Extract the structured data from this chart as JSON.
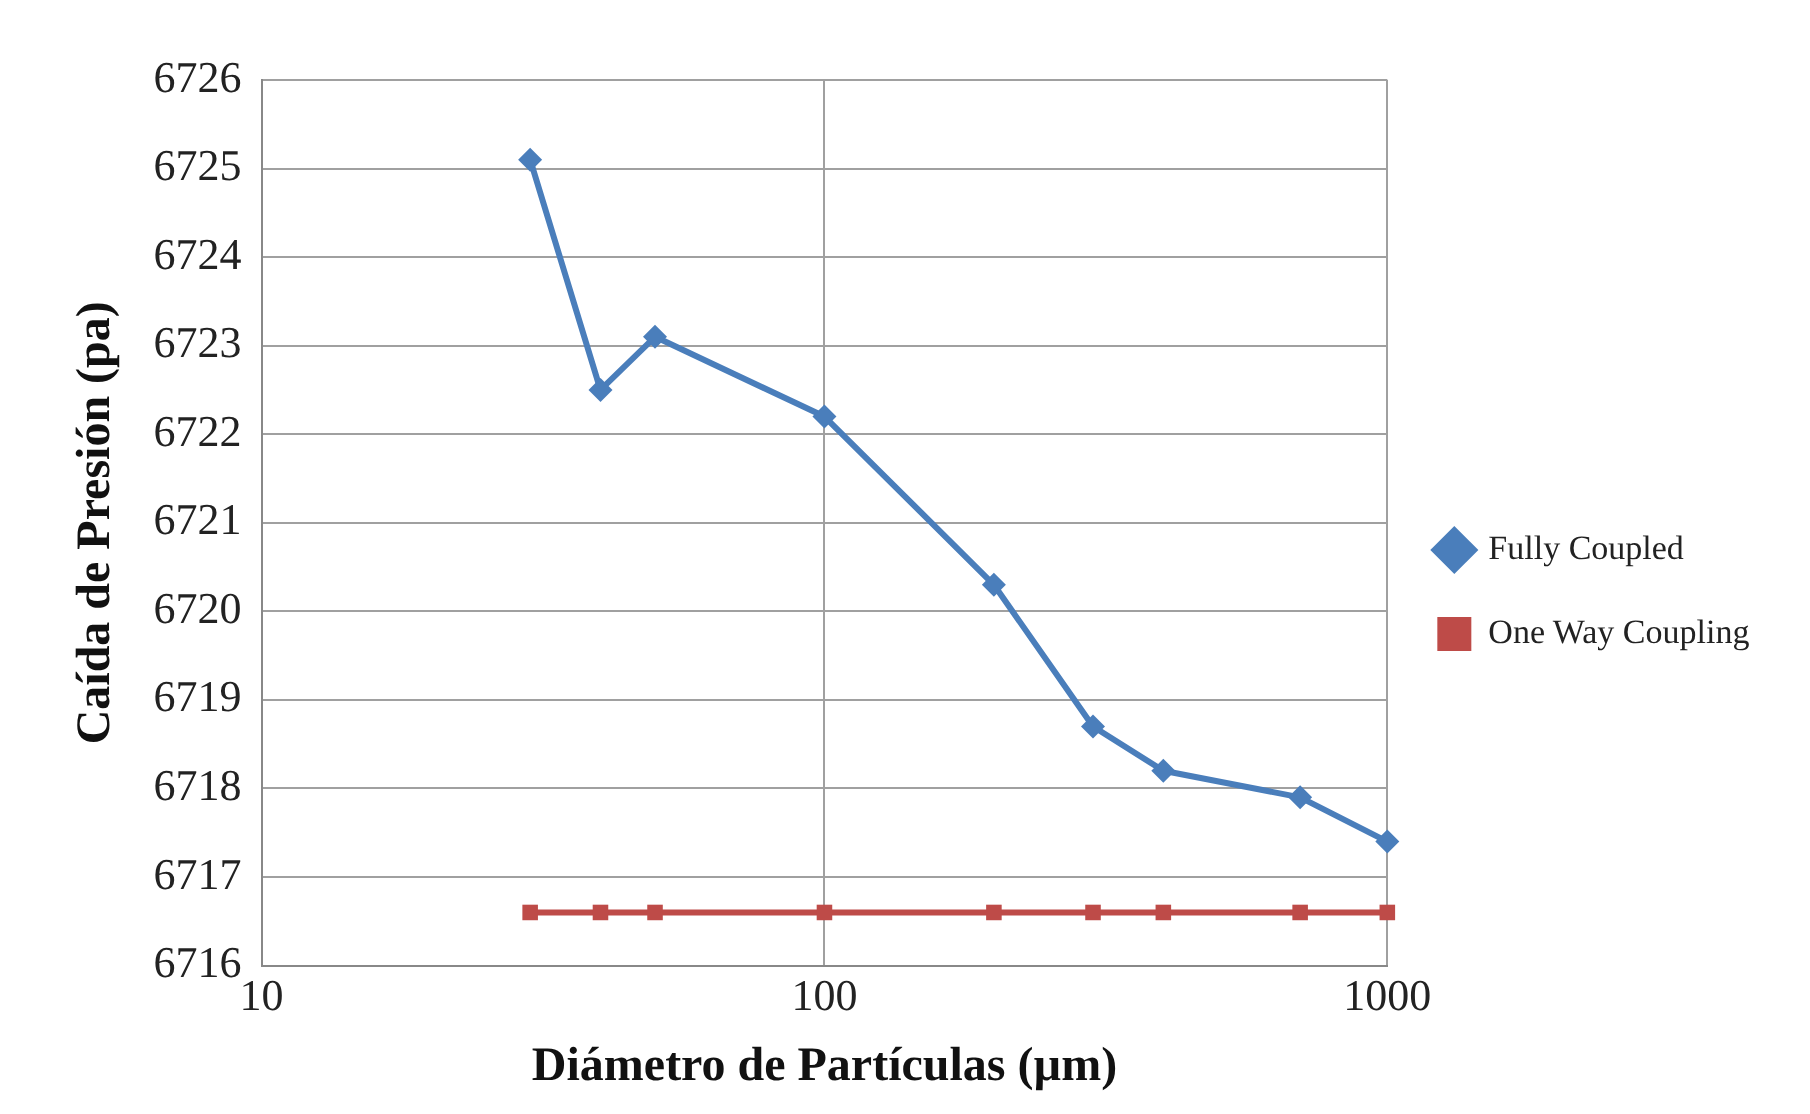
{
  "chart_data": {
    "type": "line",
    "xlabel": "Diámetro de Partículas (µm)",
    "ylabel": "Caída de Presión (pa)",
    "log": "x",
    "xlim": [
      10,
      1000
    ],
    "xticks": [
      10,
      100,
      1000
    ],
    "ylim": [
      6716,
      6726
    ],
    "yticks": [
      6716,
      6717,
      6718,
      6719,
      6720,
      6721,
      6722,
      6723,
      6724,
      6725,
      6726
    ],
    "grid": true,
    "legend": "right",
    "line_style": "solid",
    "series": [
      {
        "name": "Fully Coupled",
        "color": "#4a7ebb",
        "marker": "diamond",
        "x": [
          30,
          40,
          50,
          100,
          200,
          300,
          400,
          700,
          1000
        ],
        "values": [
          6725.1,
          6722.5,
          6723.1,
          6722.2,
          6720.3,
          6718.7,
          6718.2,
          6717.9,
          6717.4
        ]
      },
      {
        "name": "One Way Coupling",
        "color": "#be4b48",
        "marker": "square",
        "x": [
          30,
          40,
          50,
          100,
          200,
          300,
          400,
          700,
          1000
        ],
        "values": [
          6716.6,
          6716.6,
          6716.6,
          6716.6,
          6716.6,
          6716.6,
          6716.6,
          6716.6,
          6716.6
        ]
      }
    ]
  }
}
